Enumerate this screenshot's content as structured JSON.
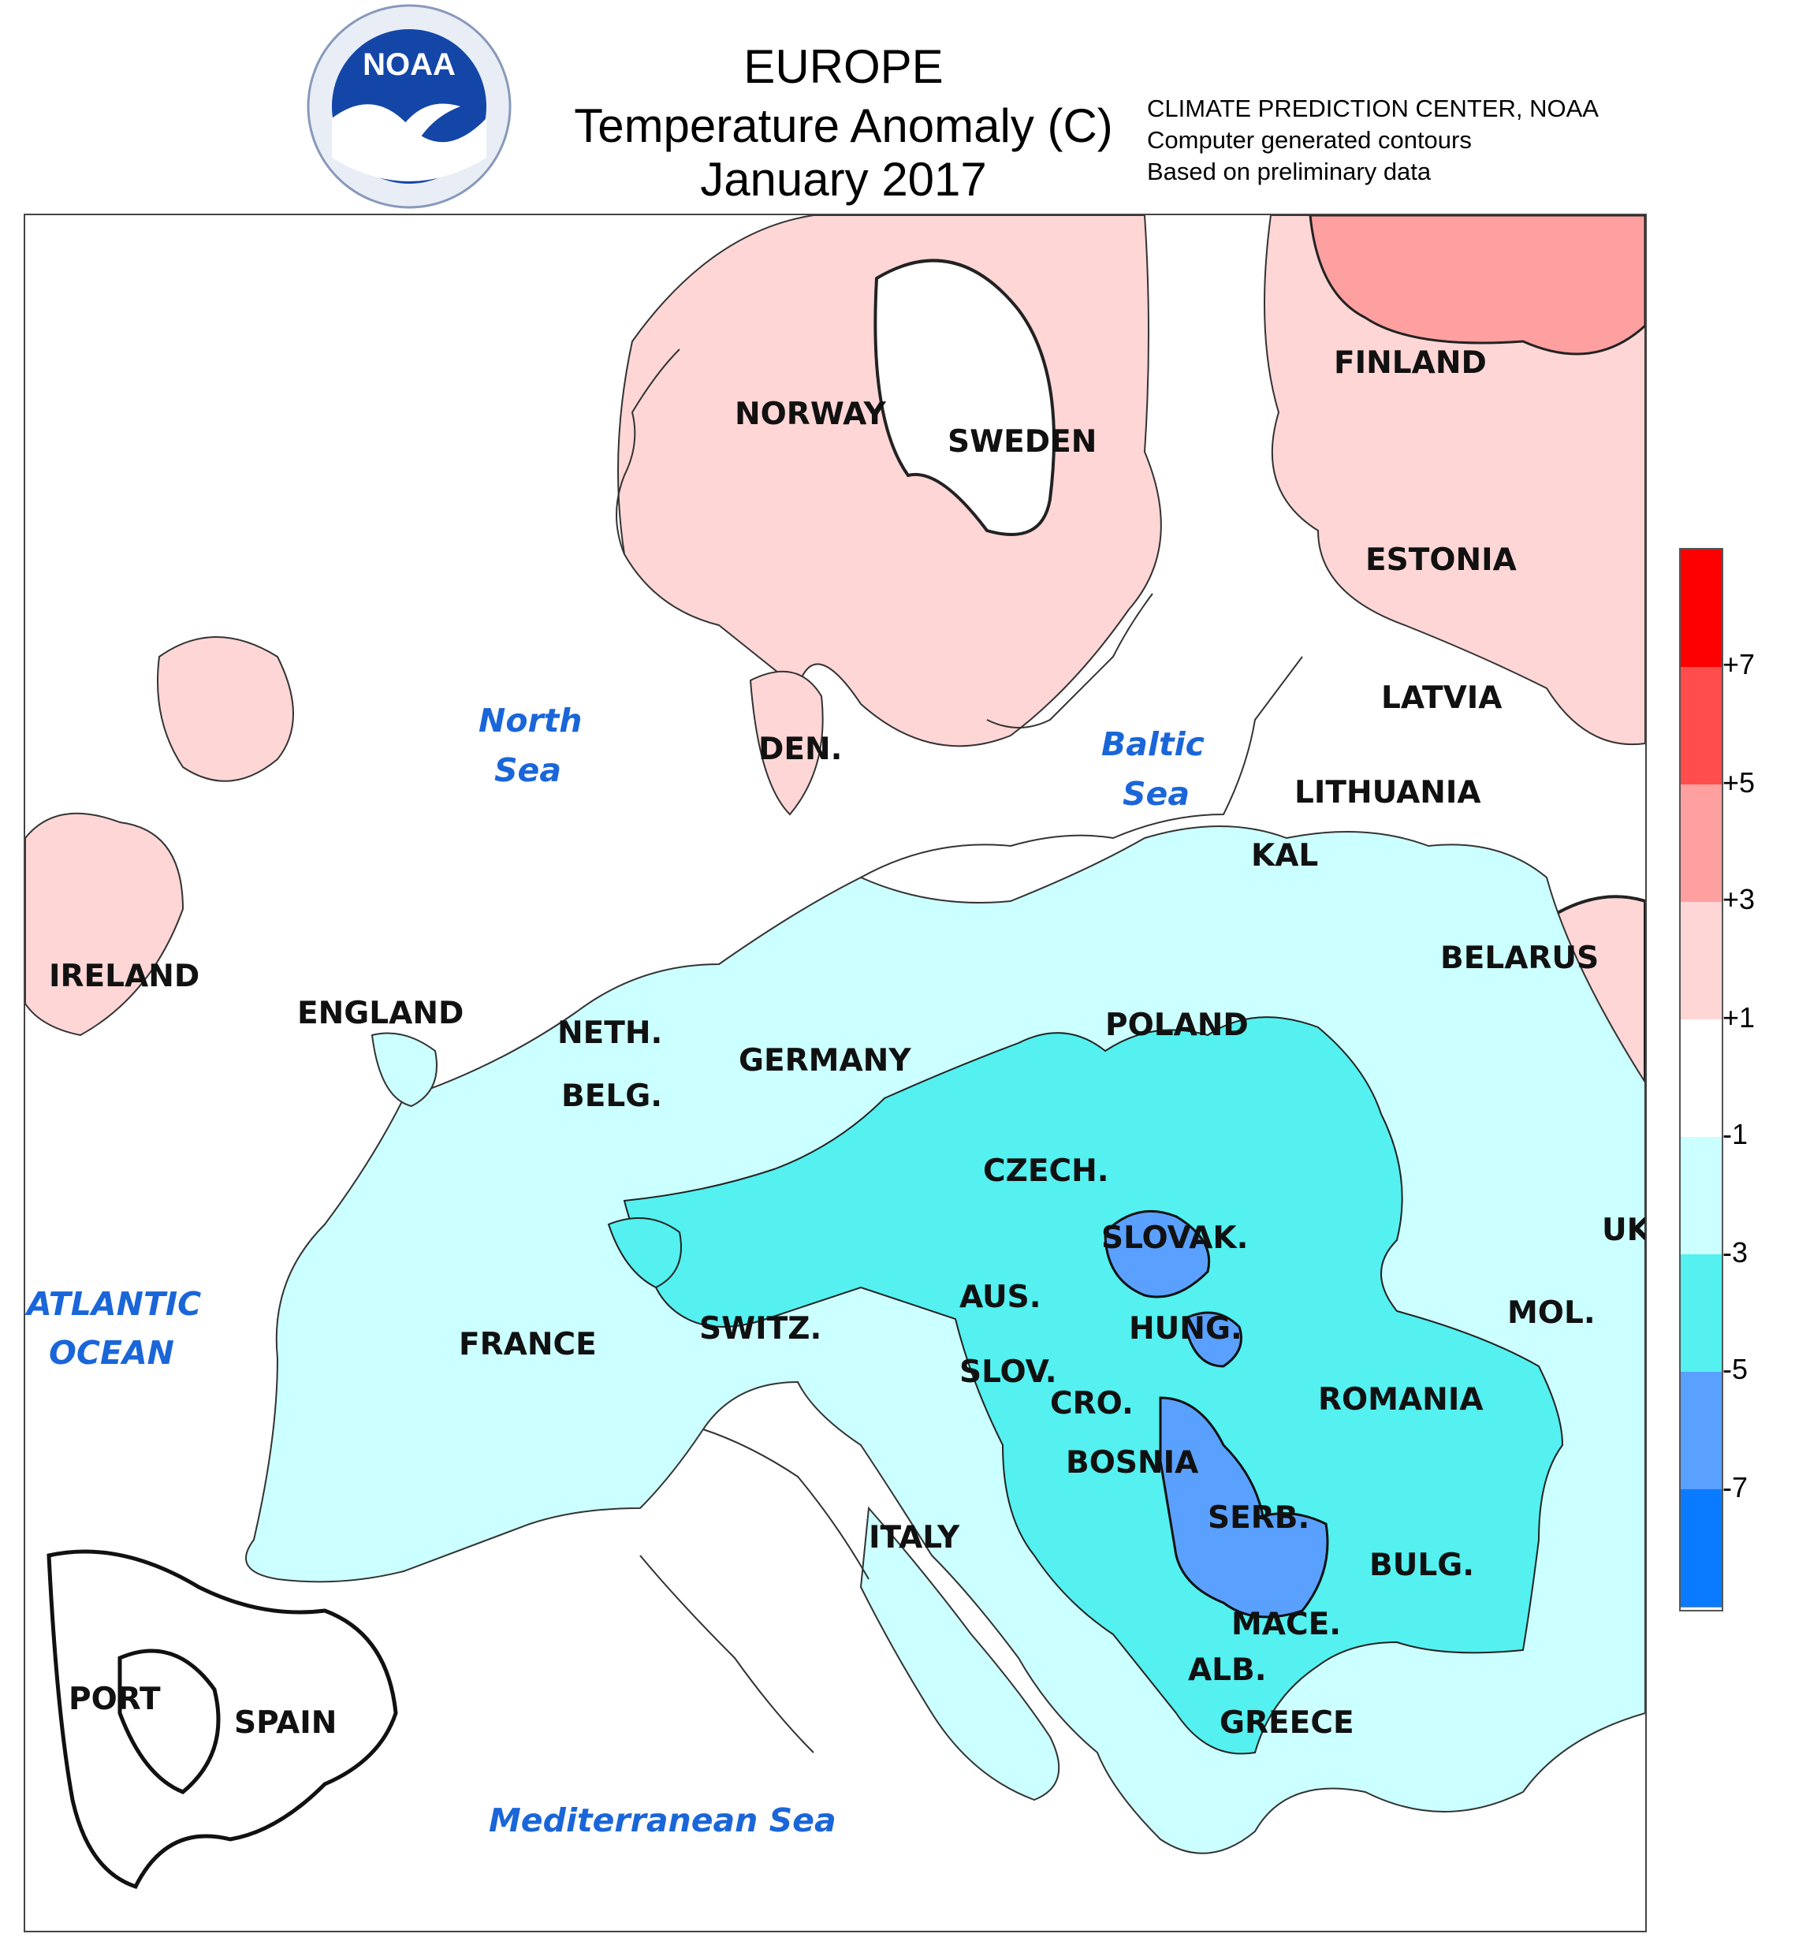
{
  "header": {
    "title_line1": "EUROPE",
    "title_line2": "Temperature Anomaly (C)",
    "title_line3": "January 2017",
    "credit_line1": "CLIMATE PREDICTION CENTER, NOAA",
    "credit_line2": "Computer generated contours",
    "credit_line3": "Based on preliminary data",
    "logo_text": "NOAA"
  },
  "countries": {
    "norway": "NORWAY",
    "sweden": "SWEDEN",
    "finland": "FINLAND",
    "estonia": "ESTONIA",
    "latvia": "LATVIA",
    "lithuania": "LITHUANIA",
    "kal": "KAL",
    "belarus": "BELARUS",
    "den": "DEN.",
    "ireland": "IRELAND",
    "england": "ENGLAND",
    "neth": "NETH.",
    "belg": "BELG.",
    "germany": "GERMANY",
    "poland": "POLAND",
    "czech": "CZECH.",
    "slovak": "SLOVAK.",
    "uk": "UK",
    "aus": "AUS.",
    "hung": "HUNG.",
    "mol": "MOL.",
    "switz": "SWITZ.",
    "france": "FRANCE",
    "slov": "SLOV.",
    "cro": "CRO.",
    "romania": "ROMANIA",
    "bosnia": "BOSNIA",
    "serb": "SERB.",
    "bulg": "BULG.",
    "italy": "ITALY",
    "mace": "MACE.",
    "alb": "ALB.",
    "greece": "GREECE",
    "port": "PORT",
    "spain": "SPAIN"
  },
  "seas": {
    "north_sea_1": "North",
    "north_sea_2": "Sea",
    "baltic_1": "Baltic",
    "baltic_2": "Sea",
    "atlantic_1": "ATLANTIC",
    "atlantic_2": "OCEAN",
    "med": "Mediterranean Sea"
  },
  "legend": {
    "colors": [
      "#ff0000",
      "#ff4d4d",
      "#ffa0a0",
      "#ffd6d6",
      "#ffffff",
      "#ccffff",
      "#55f0f0",
      "#5aa0ff",
      "#0a7bff"
    ],
    "ticks": [
      "+7",
      "+5",
      "+3",
      "+1",
      "-1",
      "-3",
      "-5",
      "-7"
    ]
  }
}
